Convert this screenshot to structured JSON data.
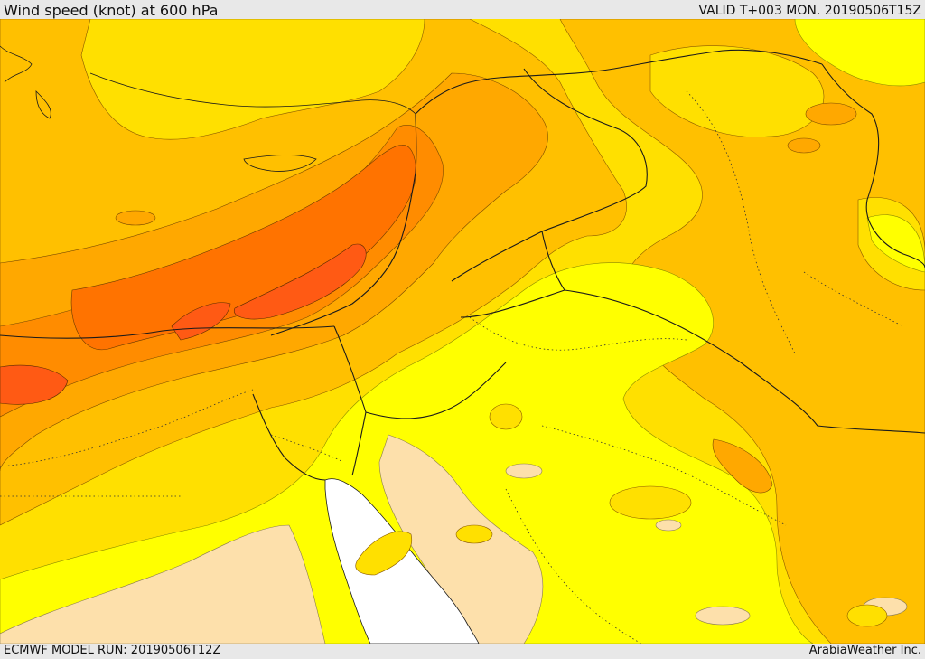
{
  "header": {
    "title": "Wind speed (knot) at 600 hPa",
    "valid": "VALID T+003 MON. 20190506T15Z"
  },
  "footer": {
    "model_run": "ECMWF MODEL RUN: 20190506T12Z",
    "credit": "ArabiaWeather Inc."
  },
  "map": {
    "colors": {
      "palest": "#fde0ab",
      "yellow": "#ffff00",
      "gold": "#ffe000",
      "amber": "#ffc000",
      "orange_light": "#ffa800",
      "orange": "#ff8c00",
      "orange_dark": "#ff7300",
      "red_orange": "#ff5a14",
      "sea_white": "#ffffff",
      "border": "#1a1a1a"
    }
  }
}
